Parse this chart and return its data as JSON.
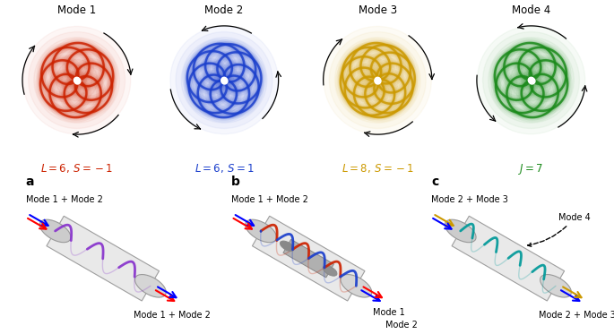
{
  "mode_labels": [
    "Mode 1",
    "Mode 2",
    "Mode 3",
    "Mode 4"
  ],
  "mode_colors": [
    "#CC2200",
    "#1B3FCC",
    "#CC9900",
    "#1A8A1A"
  ],
  "eq_texts": [
    "$\\mathit{L}=6,\\,\\mathit{S}=-1$",
    "$\\mathit{L}=6,\\,\\mathit{S}=1$",
    "$\\mathit{L}=8,\\,\\mathit{S}=-1$",
    "$\\mathit{J}=7$"
  ],
  "eq_colors": [
    "#CC2200",
    "#1B3FCC",
    "#CC9900",
    "#1A8A1A"
  ],
  "spiral_n_petals": [
    6,
    7,
    8,
    6
  ],
  "spiral_clockwise": [
    true,
    false,
    true,
    false
  ],
  "bg_color": "#ffffff",
  "panel_a_helix_color": "#8833CC",
  "panel_b_helix_color1": "#CC2200",
  "panel_b_helix_color2": "#1B3FCC",
  "panel_c_helix_color": "#009999",
  "panel_a_label_in": "Mode 1 + Mode 2",
  "panel_a_label_out": "Mode 1 + Mode 2",
  "panel_b_label_in": "Mode 1 + Mode 2",
  "panel_b_label_out1": "Mode 1",
  "panel_b_label_out2": "Mode 2",
  "panel_c_label_in": "Mode 2 + Mode 3",
  "panel_c_label_out": "Mode 2 + Mode 3",
  "panel_c_label_mode4": "Mode 4"
}
